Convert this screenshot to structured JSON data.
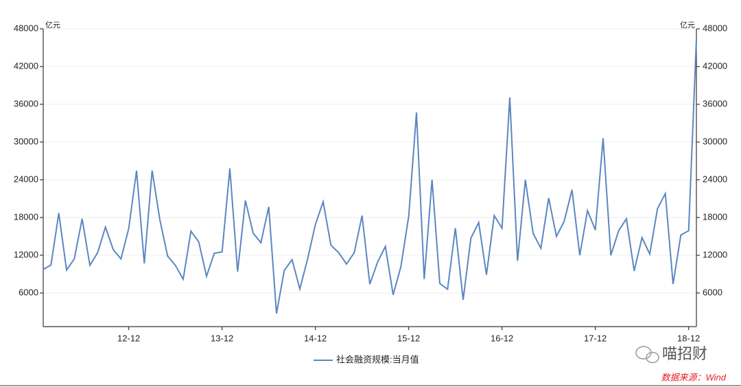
{
  "chart_data": {
    "type": "line",
    "y_unit": "亿元",
    "y2_unit": "亿元",
    "categories": [
      null,
      null,
      null,
      null,
      null,
      null,
      null,
      null,
      null,
      null,
      null,
      "12-12",
      null,
      null,
      null,
      null,
      null,
      null,
      null,
      null,
      null,
      null,
      null,
      "13-12",
      null,
      null,
      null,
      null,
      null,
      null,
      null,
      null,
      null,
      null,
      null,
      "14-12",
      null,
      null,
      null,
      null,
      null,
      null,
      null,
      null,
      null,
      null,
      null,
      "15-12",
      null,
      null,
      null,
      null,
      null,
      null,
      null,
      null,
      null,
      null,
      null,
      "16-12",
      null,
      null,
      null,
      null,
      null,
      null,
      null,
      null,
      null,
      null,
      null,
      "17-12",
      null,
      null,
      null,
      null,
      null,
      null,
      null,
      null,
      null,
      null,
      null,
      "18-12",
      null
    ],
    "series": [
      {
        "name": "社会融资规模:当月值",
        "color": "#5b86c0",
        "values": [
          9754,
          10431,
          18704,
          9637,
          11426,
          17802,
          10401,
          12395,
          16479,
          12906,
          11412,
          16300,
          25446,
          10705,
          25470,
          17629,
          11871,
          10375,
          8191,
          15841,
          14120,
          8645,
          12310,
          12532,
          25800,
          9387,
          20700,
          15500,
          14000,
          19700,
          2734,
          9577,
          11300,
          6626,
          11400,
          16900,
          20500,
          13600,
          12400,
          10600,
          12400,
          18300,
          7400,
          10900,
          13400,
          5700,
          10200,
          18200,
          34700,
          8200,
          24000,
          7500,
          6600,
          16300,
          4900,
          14700,
          17200,
          8900,
          18300,
          16300,
          37100,
          11100,
          24000,
          15500,
          13100,
          21100,
          15000,
          17400,
          22400,
          12000,
          19100,
          16000,
          30600,
          12000,
          15900,
          17800,
          9500,
          14800,
          12200,
          19400,
          21800,
          7400,
          15200,
          15900,
          46400
        ]
      }
    ],
    "ylim": [
      650,
      48000
    ],
    "yticks": [
      6000,
      12000,
      18000,
      24000,
      30000,
      36000,
      42000,
      48000
    ],
    "y2lim": [
      650,
      48000
    ],
    "y2ticks": [
      6000,
      12000,
      18000,
      24000,
      30000,
      36000,
      42000,
      48000
    ],
    "grid": true,
    "watermark": "喵招财",
    "source": "数据来源：Wind"
  }
}
